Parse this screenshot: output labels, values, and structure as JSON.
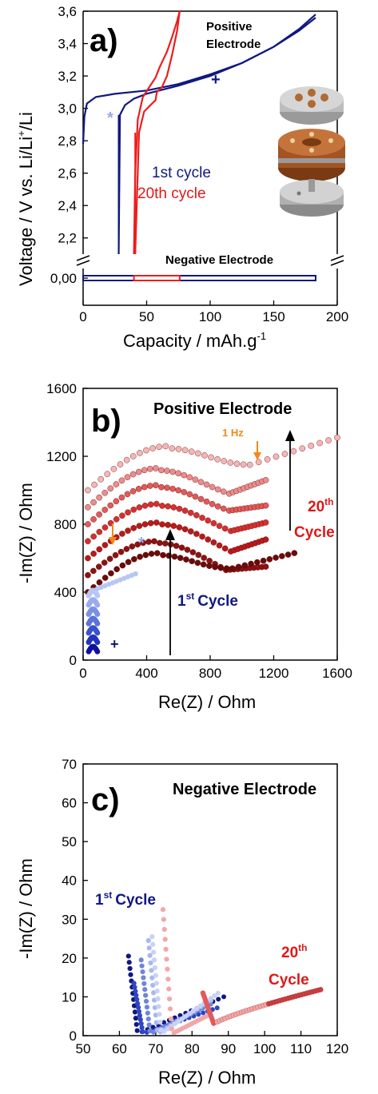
{
  "colors": {
    "blue_dark": "#101880",
    "blue_light": "#9aa8e8",
    "red": "#ee1c1c",
    "dark_red": "#6b0a0a",
    "orange": "#f08a18",
    "gray": "#a8a8a8",
    "copper": "#b0602a"
  },
  "chart_data": [
    {
      "type": "line",
      "panel": "a)",
      "xlabel": "Capacity / mAh.g",
      "xlabel_sup": "-1",
      "ylabel": "Voltage / V vs. Li/Li",
      "ylabel_sup": "+",
      "xlim": [
        0,
        200
      ],
      "xticks": [
        "0",
        "50",
        "100",
        "150",
        "200"
      ],
      "yticks_upper": [
        "2,2",
        "2,4",
        "2,6",
        "2,8",
        "3,0",
        "3,2",
        "3,4",
        "3,6"
      ],
      "ylim_upper": [
        2.1,
        3.6
      ],
      "yticks_lower": [
        "0,00"
      ],
      "annotations": [
        "Positive",
        "Electrode",
        "Negative Electrode"
      ],
      "markers": [
        "*",
        "+"
      ],
      "series": [
        {
          "name": "1st cycle",
          "color": "#101880",
          "charge_x": [
            0,
            1,
            3,
            10,
            25,
            50,
            75,
            100,
            125,
            150,
            170,
            183
          ],
          "charge_y": [
            2.78,
            2.95,
            3.03,
            3.07,
            3.09,
            3.11,
            3.15,
            3.21,
            3.28,
            3.38,
            3.49,
            3.58
          ],
          "discharge_x": [
            183,
            170,
            150,
            125,
            100,
            75,
            50,
            40,
            33,
            29,
            28
          ],
          "discharge_y": [
            3.56,
            3.48,
            3.38,
            3.28,
            3.2,
            3.14,
            3.09,
            3.06,
            3.02,
            2.96,
            2.1
          ],
          "negative_x": [
            0,
            28,
            183
          ],
          "negative_y": [
            0.0,
            0.0,
            0.0
          ]
        },
        {
          "name": "20th cycle",
          "color": "#ee1c1c",
          "charge_x": [
            40,
            41,
            43,
            47,
            52,
            57,
            60,
            66,
            70,
            74,
            76
          ],
          "charge_y": [
            2.1,
            2.6,
            2.93,
            3.07,
            3.13,
            3.19,
            3.25,
            3.35,
            3.44,
            3.54,
            3.6
          ],
          "discharge_x": [
            76,
            74,
            70,
            66,
            62,
            58,
            57,
            53,
            48,
            44,
            41
          ],
          "discharge_y": [
            3.6,
            3.48,
            3.33,
            3.2,
            3.13,
            3.1,
            3.05,
            3.02,
            2.98,
            2.85,
            2.1
          ],
          "negative_x": [
            40,
            76
          ],
          "negative_y": [
            0.0,
            0.0
          ]
        }
      ]
    },
    {
      "type": "scatter",
      "panel": "b)",
      "title": "Positive Electrode",
      "xlabel": "Re(Z) / Ohm",
      "ylabel": "-Im(Z) / Ohm",
      "xlim": [
        0,
        1600
      ],
      "ylim": [
        0,
        1600
      ],
      "xticks": [
        "0",
        "400",
        "800",
        "1200",
        "1600"
      ],
      "yticks": [
        "0",
        "400",
        "800",
        "1200",
        "1600"
      ],
      "annotations": [
        "1 Hz",
        "20",
        "th",
        "Cycle",
        "1",
        "st",
        "Cycle",
        "*",
        "+"
      ],
      "series": [
        {
          "name": "20th cycle",
          "color": "#f4b6b6",
          "offset": 1000,
          "peak_x": 500,
          "peak_y": 260,
          "min_x": 1050,
          "min_y": 150,
          "end_x": 1600,
          "end_y": 310
        },
        {
          "name": "",
          "color": "#ec8c8c",
          "offset": 900,
          "peak_x": 480,
          "peak_y": 230,
          "min_x": 920,
          "min_y": 80,
          "end_x": 1150,
          "end_y": 160
        },
        {
          "name": "",
          "color": "#e25a5a",
          "offset": 800,
          "peak_x": 470,
          "peak_y": 230,
          "min_x": 920,
          "min_y": 80,
          "end_x": 1150,
          "end_y": 110
        },
        {
          "name": "",
          "color": "#d63030",
          "offset": 700,
          "peak_x": 460,
          "peak_y": 220,
          "min_x": 930,
          "min_y": 60,
          "end_x": 1150,
          "end_y": 110
        },
        {
          "name": "",
          "color": "#b81a1a",
          "offset": 600,
          "peak_x": 440,
          "peak_y": 210,
          "min_x": 930,
          "min_y": 40,
          "end_x": 1150,
          "end_y": 110
        },
        {
          "name": "",
          "color": "#8c1212",
          "offset": 500,
          "peak_x": 420,
          "peak_y": 200,
          "min_x": 900,
          "min_y": 30,
          "end_x": 1150,
          "end_y": 50
        },
        {
          "name": "",
          "color": "#6b0a0a",
          "offset": 400,
          "peak_x": 430,
          "peak_y": 230,
          "min_x": 940,
          "min_y": 140,
          "end_x": 1330,
          "end_y": 230
        },
        {
          "name": "1st cycle",
          "color": "#1a2a9e",
          "low_frequency_end_x": 330,
          "low_frequency_end_y": 640,
          "start_x": 30,
          "start_y": 40
        }
      ]
    },
    {
      "type": "scatter",
      "panel": "c)",
      "title": "Negative Electrode",
      "xlabel": "Re(Z) / Ohm",
      "ylabel": "-Im(Z) / Ohm",
      "xlim": [
        50,
        120
      ],
      "ylim": [
        0,
        70
      ],
      "xticks": [
        "50",
        "60",
        "70",
        "80",
        "90",
        "100",
        "110",
        "120"
      ],
      "yticks": [
        "0",
        "10",
        "20",
        "30",
        "40",
        "50",
        "60",
        "70"
      ],
      "annotations": [
        "1",
        "st",
        "Cycle",
        "20",
        "th",
        "Cycle"
      ],
      "series": [
        {
          "name": "1st cycle",
          "color": "#101880",
          "spike_x": 62.5,
          "spike_top": 20,
          "tail_end_x": 90,
          "tail_end_y": 10
        },
        {
          "name": "",
          "color": "#2f45c2",
          "spike_x": 64,
          "spike_top": 13,
          "tail_end_x": 88,
          "tail_end_y": 7
        },
        {
          "name": "",
          "color": "#6e86d8",
          "spike_x": 66,
          "spike_top": 19,
          "tail_end_x": 86,
          "tail_end_y": 8
        },
        {
          "name": "",
          "color": "#a8b8ee",
          "spike_x": 68,
          "spike_top": 24,
          "tail_end_x": 86,
          "tail_end_y": 9
        },
        {
          "name": "",
          "color": "#c8d2f6",
          "spike_x": 69,
          "spike_top": 25,
          "tail_end_x": 88,
          "tail_end_y": 11
        },
        {
          "name": "",
          "color": "#f2a8a8",
          "spike_x": 72,
          "spike_top": 32,
          "tail_end_x": 85,
          "tail_end_y": 5
        },
        {
          "name": "20th cycle",
          "color": "#e25a5a",
          "min_x": 86,
          "min_y": 3,
          "tail_end_x": 116,
          "tail_end_y": 12
        }
      ]
    }
  ]
}
